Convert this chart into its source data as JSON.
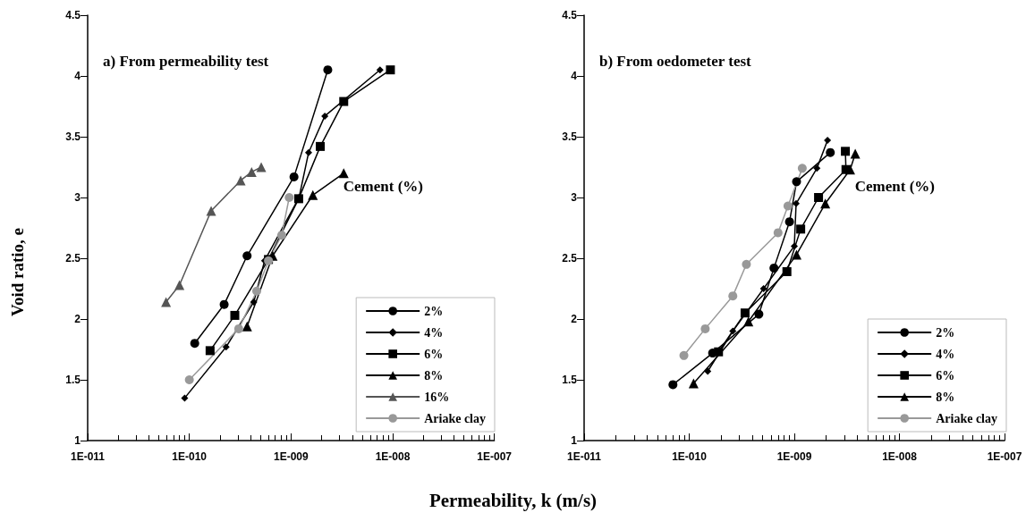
{
  "chart_data": [
    {
      "type": "line",
      "title": "a) From permeability test",
      "xlabel": "Permeability, k (m/s)",
      "ylabel": "Void ratio, e",
      "legend_title": "Cement (%)",
      "legend": "bottom right",
      "log": "x",
      "grid": false,
      "line_style": "solid",
      "xlim": [
        1e-11,
        1e-07
      ],
      "xticks": [
        {
          "value": 1e-11,
          "label": "1E-011"
        },
        {
          "value": 1e-10,
          "label": "1E-010"
        },
        {
          "value": 1e-09,
          "label": "1E-009"
        },
        {
          "value": 1e-08,
          "label": "1E-008"
        },
        {
          "value": 1e-07,
          "label": "1E-007"
        }
      ],
      "ylim": [
        1,
        4.5
      ],
      "yticks": [
        1,
        1.5,
        2,
        2.5,
        3,
        3.5,
        4,
        4.5
      ],
      "series": [
        {
          "name": "2%",
          "color": "#000000",
          "marker": "circle",
          "x": [
            1.13e-10,
            2.2e-10,
            3.7e-10,
            1.07e-09,
            2.3e-09
          ],
          "values": [
            1.8,
            2.12,
            2.52,
            3.17,
            4.05
          ]
        },
        {
          "name": "4%",
          "color": "#000000",
          "marker": "diamond",
          "x": [
            9e-11,
            2.3e-10,
            4.3e-10,
            5.5e-10,
            1.2e-09,
            1.49e-09,
            2.15e-09,
            7.5e-09
          ],
          "values": [
            1.35,
            1.77,
            2.14,
            2.48,
            3.0,
            3.37,
            3.67,
            4.05
          ]
        },
        {
          "name": "6%",
          "color": "#000000",
          "marker": "square",
          "x": [
            1.6e-10,
            2.8e-10,
            6e-10,
            1.19e-09,
            1.94e-09,
            3.3e-09,
            9.5e-09
          ],
          "values": [
            1.74,
            2.03,
            2.49,
            2.99,
            3.42,
            3.79,
            4.05
          ]
        },
        {
          "name": "8%",
          "color": "#000000",
          "marker": "triangle",
          "x": [
            3.7e-10,
            6.6e-10,
            1.64e-09,
            3.3e-09
          ],
          "values": [
            1.94,
            2.52,
            3.02,
            3.2
          ]
        },
        {
          "name": "16%",
          "color": "#555555",
          "marker": "triangle",
          "x": [
            5.9e-11,
            8e-11,
            1.64e-10,
            3.2e-10,
            4.1e-10,
            5.1e-10
          ],
          "values": [
            2.14,
            2.28,
            2.89,
            3.14,
            3.21,
            3.25
          ]
        },
        {
          "name": "Ariake clay",
          "color": "#999999",
          "marker": "circle",
          "x": [
            1e-10,
            3.06e-10,
            4.6e-10,
            6e-10,
            8.1e-10,
            9.6e-10
          ],
          "values": [
            1.5,
            1.92,
            2.23,
            2.48,
            2.69,
            3.0
          ]
        }
      ]
    },
    {
      "type": "line",
      "title": "b) From oedometer test",
      "legend_title": "Cement (%)",
      "legend": "bottom right",
      "log": "x",
      "grid": false,
      "line_style": "solid",
      "xlim": [
        1e-11,
        1e-07
      ],
      "xticks": [
        {
          "value": 1e-11,
          "label": "1E-011"
        },
        {
          "value": 1e-10,
          "label": "1E-010"
        },
        {
          "value": 1e-09,
          "label": "1E-009"
        },
        {
          "value": 1e-08,
          "label": "1E-008"
        },
        {
          "value": 1e-07,
          "label": "1E-007"
        }
      ],
      "ylim": [
        1,
        4.5
      ],
      "yticks": [
        1,
        1.5,
        2,
        2.5,
        3,
        3.5,
        4,
        4.5
      ],
      "series": [
        {
          "name": "2%",
          "color": "#000000",
          "marker": "circle",
          "x": [
            7e-11,
            1.67e-10,
            4.6e-10,
            6.4e-10,
            9e-10,
            1.05e-09,
            2.2e-09
          ],
          "values": [
            1.46,
            1.72,
            2.04,
            2.42,
            2.8,
            3.13,
            3.37
          ]
        },
        {
          "name": "4%",
          "color": "#000000",
          "marker": "diamond",
          "x": [
            1.5e-10,
            2.6e-10,
            5.1e-10,
            1e-09,
            1.04e-09,
            1.64e-09,
            2.07e-09
          ],
          "values": [
            1.57,
            1.9,
            2.25,
            2.6,
            2.95,
            3.24,
            3.47
          ]
        },
        {
          "name": "6%",
          "color": "#000000",
          "marker": "square",
          "x": [
            1.9e-10,
            3.4e-10,
            8.5e-10,
            1.15e-09,
            1.7e-09,
            3.1e-09,
            3.06e-09
          ],
          "values": [
            1.73,
            2.05,
            2.39,
            2.74,
            3.0,
            3.23,
            3.38
          ]
        },
        {
          "name": "8%",
          "color": "#000000",
          "marker": "triangle",
          "x": [
            1.1e-10,
            3.66e-10,
            1.05e-09,
            1.97e-09,
            3.4e-09,
            3.8e-09
          ],
          "values": [
            1.47,
            1.98,
            2.53,
            2.95,
            3.23,
            3.36
          ]
        },
        {
          "name": "Ariake clay",
          "color": "#999999",
          "marker": "circle",
          "x": [
            8.9e-11,
            1.42e-10,
            2.6e-10,
            3.5e-10,
            7e-10,
            8.7e-10,
            1.19e-09
          ],
          "values": [
            1.7,
            1.92,
            2.19,
            2.45,
            2.71,
            2.93,
            3.24
          ]
        }
      ]
    }
  ]
}
